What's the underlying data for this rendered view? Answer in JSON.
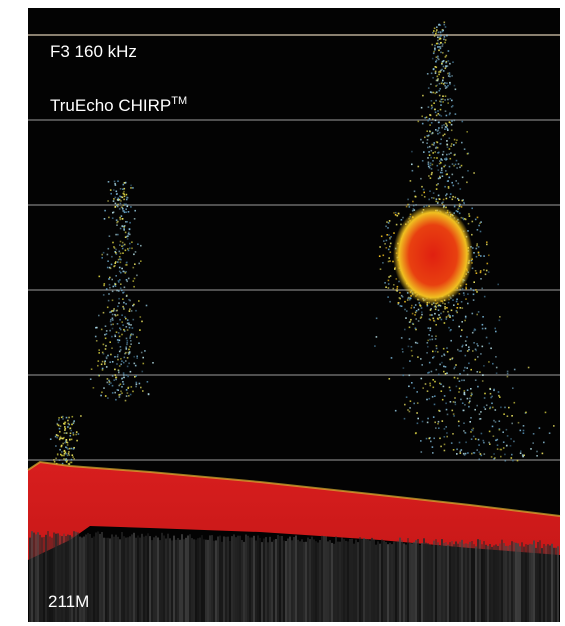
{
  "header": {
    "frequency": "F3 160 kHz",
    "mode": "TruEcho CHIRP",
    "mode_mark": "TM"
  },
  "depth": "211M"
}
